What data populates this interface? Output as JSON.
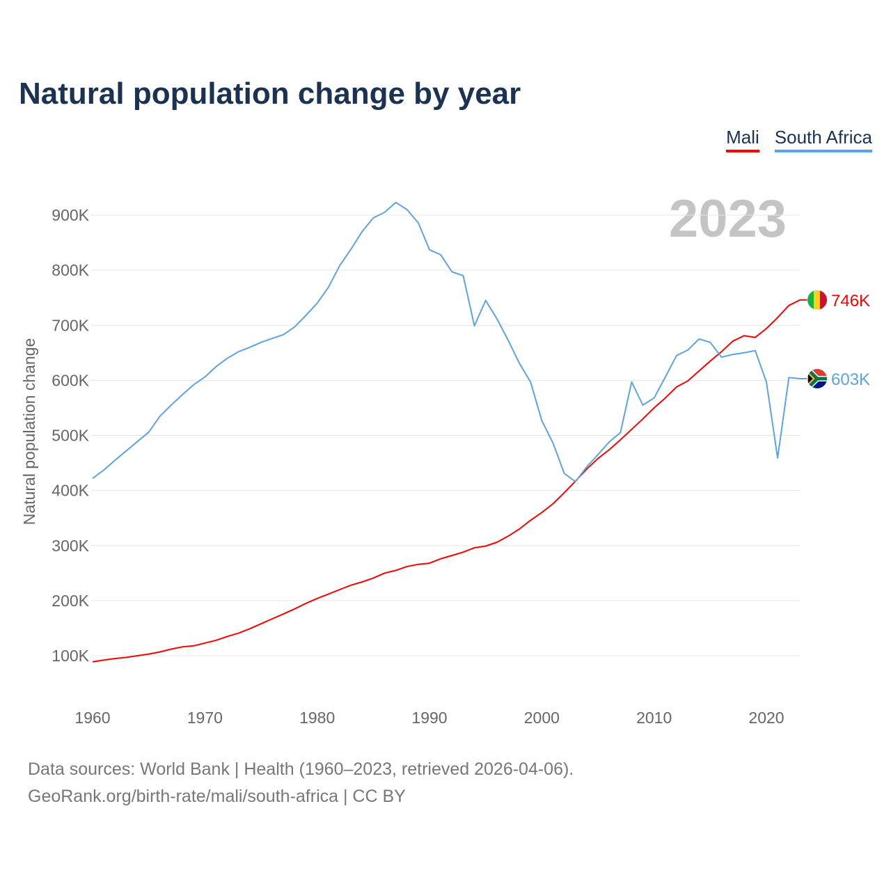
{
  "chart_data": {
    "type": "line",
    "title": "Natural population change by year",
    "ylabel": "Natural population change",
    "xlabel": "",
    "year_label": "2023",
    "x": [
      1960,
      1961,
      1962,
      1963,
      1964,
      1965,
      1966,
      1967,
      1968,
      1969,
      1970,
      1971,
      1972,
      1973,
      1974,
      1975,
      1976,
      1977,
      1978,
      1979,
      1980,
      1981,
      1982,
      1983,
      1984,
      1985,
      1986,
      1987,
      1988,
      1989,
      1990,
      1991,
      1992,
      1993,
      1994,
      1995,
      1996,
      1997,
      1998,
      1999,
      2000,
      2001,
      2002,
      2003,
      2004,
      2005,
      2006,
      2007,
      2008,
      2009,
      2010,
      2011,
      2012,
      2013,
      2014,
      2015,
      2016,
      2017,
      2018,
      2019,
      2020,
      2021,
      2022,
      2023
    ],
    "series": [
      {
        "name": "Mali",
        "color": "#ff0000",
        "end_label": "746K",
        "values": [
          89,
          92,
          95,
          97,
          100,
          103,
          107,
          112,
          116,
          118,
          123,
          128,
          135,
          141,
          149,
          158,
          167,
          176,
          185,
          195,
          204,
          212,
          220,
          228,
          234,
          241,
          250,
          255,
          262,
          266,
          268,
          276,
          282,
          288,
          296,
          299,
          306,
          317,
          330,
          346,
          360,
          376,
          396,
          417,
          439,
          458,
          474,
          492,
          511,
          530,
          550,
          568,
          588,
          599,
          617,
          635,
          652,
          671,
          681,
          678,
          694,
          714,
          736,
          746
        ]
      },
      {
        "name": "South Africa",
        "color": "#5ba3e8",
        "end_label": "603K",
        "values": [
          422,
          437,
          455,
          472,
          489,
          506,
          535,
          555,
          574,
          592,
          606,
          625,
          640,
          652,
          660,
          669,
          676,
          683,
          697,
          718,
          740,
          769,
          808,
          838,
          870,
          895,
          905,
          923,
          910,
          886,
          837,
          828,
          797,
          790,
          699,
          745,
          712,
          673,
          631,
          597,
          527,
          486,
          431,
          416,
          443,
          465,
          488,
          505,
          597,
          555,
          568,
          606,
          645,
          655,
          675,
          669,
          642,
          647,
          650,
          654,
          597,
          459,
          605,
          603
        ]
      }
    ],
    "yticks": [
      100,
      200,
      300,
      400,
      500,
      600,
      700,
      800,
      900
    ],
    "ytick_labels": [
      "100K",
      "200K",
      "300K",
      "400K",
      "500K",
      "600K",
      "700K",
      "800K",
      "900K"
    ],
    "xticks": [
      1960,
      1970,
      1980,
      1990,
      2000,
      2010,
      2020
    ],
    "xtick_labels": [
      "1960",
      "1970",
      "1980",
      "1990",
      "2000",
      "2010",
      "2020"
    ],
    "xlim": [
      1960,
      2023
    ],
    "units": "thousands",
    "grid": true,
    "legend_position": "top-right"
  },
  "footer": {
    "line1": "Data sources: World Bank | Health (1960–2023, retrieved 2026-04-06).",
    "line2": "GeoRank.org/birth-rate/mali/south-africa | CC BY"
  }
}
